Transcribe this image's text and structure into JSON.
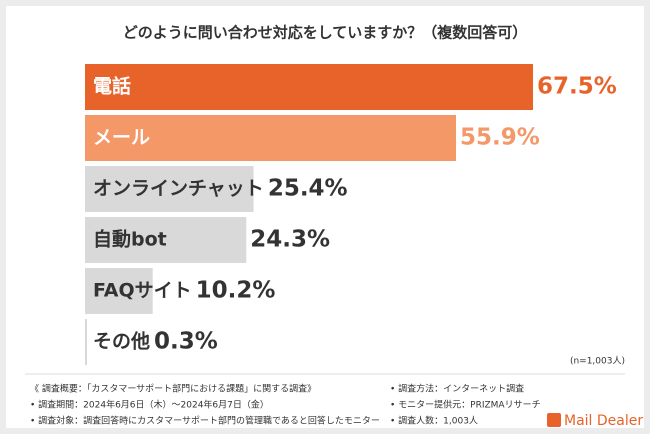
{
  "chart_data": {
    "type": "bar",
    "orientation": "horizontal",
    "title": "どのように問い合わせ対応をしていますか？（複数回答可）",
    "categories": [
      "電話",
      "メール",
      "オンラインチャット",
      "自動bot",
      "FAQサイト",
      "その他"
    ],
    "values": [
      67.5,
      55.9,
      25.4,
      24.3,
      10.2,
      0.3
    ],
    "value_labels": [
      "67.5%",
      "55.9%",
      "25.4%",
      "24.3%",
      "10.2%",
      "0.3%"
    ],
    "colors": [
      "#e8632a",
      "#f59868",
      "#d9d9d9",
      "#d9d9d9",
      "#d9d9d9",
      "#d9d9d9"
    ],
    "category_label_colors": [
      "#ffffff",
      "#ffffff",
      "#333333",
      "#333333",
      "#333333",
      "#333333"
    ],
    "value_label_colors": [
      "#e8632a",
      "#f59868",
      "#333333",
      "#333333",
      "#333333",
      "#333333"
    ],
    "sample_note": "(n=1,003人)"
  },
  "footer": {
    "left": [
      "《 調査概要：「カスタマーサポート部門における課題」に関する調査》",
      "• 調査期間：2024年6月6日（木）～2024年6月7日（金）",
      "• 調査対象：調査回答時にカスタマーサポート部門の管理職であると回答したモニター"
    ],
    "right": [
      "• 調査方法：インターネット調査",
      "• モニター提供元：PRIZMAリサーチ",
      "• 調査人数：1,003人"
    ],
    "logo": "Mail Dealer"
  }
}
